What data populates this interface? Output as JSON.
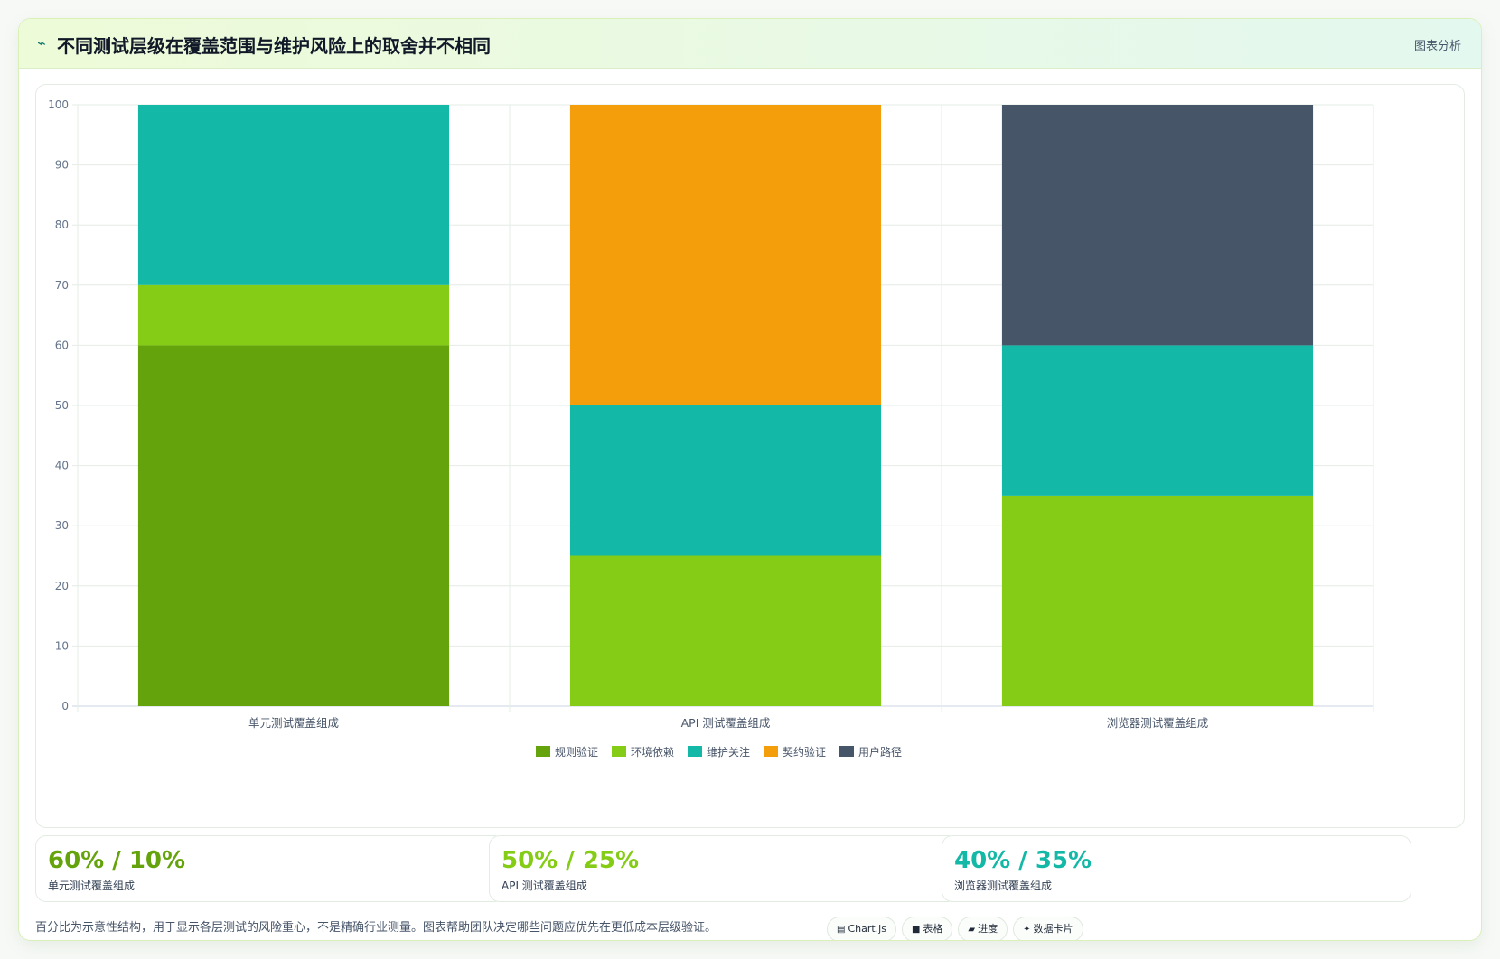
{
  "header": {
    "title": "不同测试层级在覆盖范围与维护风险上的取舍并不相同",
    "title_icon": "trend-line-icon",
    "tag": "图表分析"
  },
  "chart_data": {
    "type": "bar",
    "stacked": true,
    "categories": [
      "单元测试覆盖组成",
      "API 测试覆盖组成",
      "浏览器测试覆盖组成"
    ],
    "series": [
      {
        "name": "规则验证",
        "color": "#65a30d",
        "values": [
          60,
          0,
          0
        ]
      },
      {
        "name": "环境依赖",
        "color": "#84cc16",
        "values": [
          10,
          25,
          35
        ]
      },
      {
        "name": "维护关注",
        "color": "#14b8a6",
        "values": [
          30,
          25,
          25
        ]
      },
      {
        "name": "契约验证",
        "color": "#f59e0b",
        "values": [
          0,
          50,
          0
        ]
      },
      {
        "name": "用户路径",
        "color": "#475569",
        "values": [
          0,
          0,
          40
        ]
      }
    ],
    "ylim": [
      0,
      100
    ],
    "yticks": [
      0,
      10,
      20,
      30,
      40,
      50,
      60,
      70,
      80,
      90,
      100
    ],
    "grid": true,
    "legend": "bottom"
  },
  "cards": [
    {
      "value": "60% / 10%",
      "label": "单元测试覆盖组成",
      "color": "#65a30d"
    },
    {
      "value": "50% / 25%",
      "label": "API 测试覆盖组成",
      "color": "#84cc16"
    },
    {
      "value": "40% / 35%",
      "label": "浏览器测试覆盖组成",
      "color": "#14b8a6"
    }
  ],
  "note": "百分比为示意性结构，用于显示各层测试的风险重心，不是精确行业测量。图表帮助团队决定哪些问题应优先在更低成本层级验证。",
  "pills": [
    {
      "icon": "▤",
      "icon_name": "chart-icon",
      "label": "Chart.js"
    },
    {
      "icon": "■",
      "icon_name": "table-icon",
      "label": "表格"
    },
    {
      "icon": "▰",
      "icon_name": "progress-icon",
      "label": "进度"
    },
    {
      "icon": "✦",
      "icon_name": "sparkle-icon",
      "label": "数据卡片"
    }
  ]
}
